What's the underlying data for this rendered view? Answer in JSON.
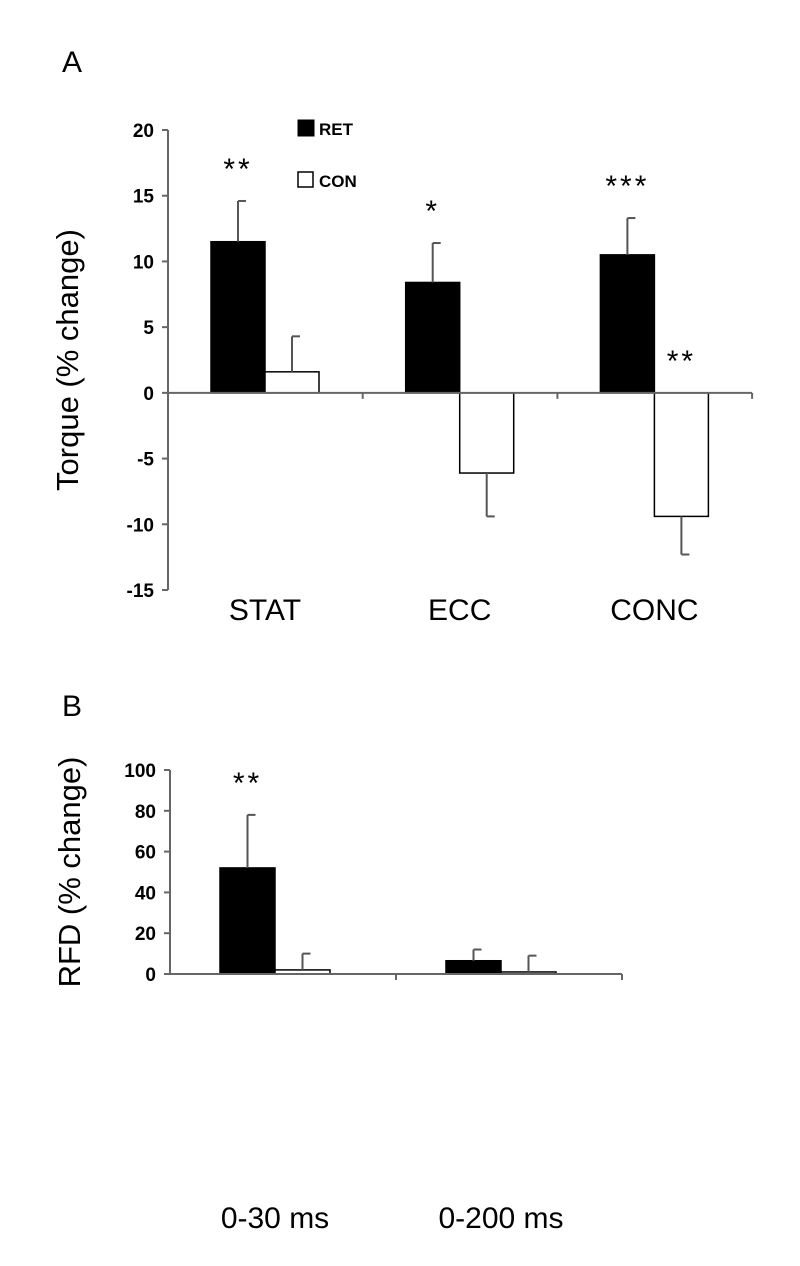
{
  "chart_data": [
    {
      "panel": "A",
      "type": "bar",
      "ylabel": "Torque (% change)",
      "ylim": [
        -15,
        20
      ],
      "yticks": [
        20,
        15,
        10,
        5,
        0,
        -5,
        -10,
        -15
      ],
      "categories": [
        "STAT",
        "ECC",
        "CONC"
      ],
      "series": [
        {
          "name": "RET",
          "color": "#000000",
          "values": [
            11.5,
            8.4,
            10.5
          ],
          "errors": [
            3.1,
            3.0,
            2.8
          ]
        },
        {
          "name": "CON",
          "color": "#ffffff",
          "values": [
            1.6,
            -6.1,
            -9.4
          ],
          "errors": [
            2.7,
            3.3,
            2.9
          ]
        }
      ],
      "annotations": [
        {
          "category": "STAT",
          "series": "RET",
          "text": "**"
        },
        {
          "category": "ECC",
          "series": "RET",
          "text": "*"
        },
        {
          "category": "CONC",
          "series": "RET",
          "text": "***"
        },
        {
          "category": "CONC",
          "series": "CON",
          "text": "**"
        }
      ],
      "legend": {
        "placement": "top-left",
        "entries": [
          "RET",
          "CON"
        ]
      }
    },
    {
      "panel": "B",
      "type": "bar",
      "ylabel": "RFD (% change)",
      "ylim": [
        0,
        100
      ],
      "yticks": [
        100,
        80,
        60,
        40,
        20,
        0
      ],
      "categories": [
        "0-30 ms",
        "0-200 ms"
      ],
      "series": [
        {
          "name": "RET",
          "color": "#000000",
          "values": [
            52,
            6.5
          ],
          "errors": [
            26,
            5.5
          ]
        },
        {
          "name": "CON",
          "color": "#ffffff",
          "values": [
            2,
            1
          ],
          "errors": [
            8,
            8
          ]
        }
      ],
      "annotations": [
        {
          "category": "0-30 ms",
          "series": "RET",
          "text": "**"
        }
      ]
    }
  ]
}
